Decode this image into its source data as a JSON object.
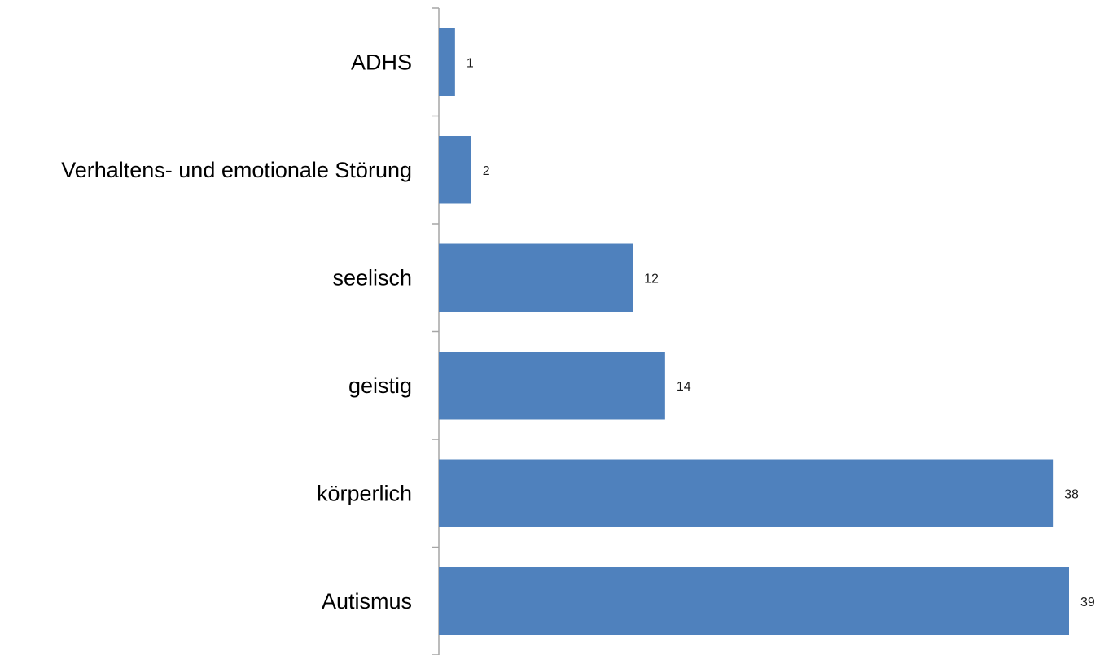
{
  "chart_data": {
    "type": "bar",
    "orientation": "horizontal",
    "categories": [
      "ADHS",
      "Verhaltens- und emotionale Störung",
      "seelisch",
      "geistig",
      "körperlich",
      "Autismus"
    ],
    "values": [
      1,
      2,
      12,
      14,
      38,
      39
    ],
    "data_labels": [
      "1",
      "2",
      "12",
      "14",
      "38",
      "39"
    ],
    "xlim": [
      0,
      39
    ],
    "grid": false,
    "legend": "none",
    "bar_color": "#4f81bd"
  }
}
